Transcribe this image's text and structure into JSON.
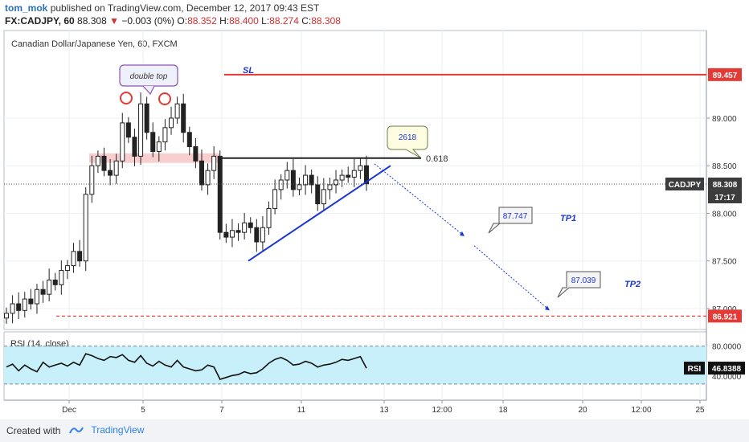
{
  "header": {
    "author": "tom_mok",
    "published": "published on TradingView.com, December 12, 2017 09:43 EST",
    "symbol_line": "FX:CADJPY, 60",
    "last": "88.308",
    "change": "−0.003 (0%)",
    "o_label": "O:",
    "o_value": "88.352",
    "h_label": "H:",
    "h_value": "88.400",
    "l_label": "L:",
    "l_value": "88.274",
    "c_label": "C:",
    "c_value": "88.308"
  },
  "footer": {
    "created_with": "Created with",
    "brand": "TradingView"
  },
  "colors": {
    "up_red": "#e53935",
    "trend_blue": "#1a35d6",
    "rsi_fill": "#c7f0fa",
    "price_tag": "#3c3c3c",
    "brand": "#2f80ed"
  },
  "chart_data": [
    {
      "type": "candlestick",
      "title": "Canadian Dollar/Japanese Yen, 60, FXCM",
      "ylim": [
        86.78,
        89.92
      ],
      "y_ticks": [
        "89.000",
        "88.500",
        "88.000",
        "87.500",
        "87.000"
      ],
      "x_ticks": [
        "Dec",
        "5",
        "7",
        "11",
        "13",
        "12:00",
        "18",
        "20",
        "12:00",
        "25"
      ],
      "price_labels": [
        {
          "label": "89.457",
          "value": 89.457,
          "style": "red"
        },
        {
          "label": "CADJPY",
          "value": 88.308,
          "style": "dark"
        },
        {
          "label": "88.308",
          "value": 88.308,
          "style": "dark"
        },
        {
          "label": "17:17",
          "value": 88.2,
          "style": "dark"
        },
        {
          "label": "86.921",
          "value": 86.921,
          "style": "red"
        }
      ],
      "levels": [
        {
          "name": "SL",
          "value": 89.457
        },
        {
          "name": "fib",
          "label": "0.618",
          "value": 88.58
        },
        {
          "name": "support",
          "value": 86.921
        }
      ],
      "annotations": {
        "double_top": "double top",
        "callout_2618": "2618",
        "sl": "SL",
        "tp1": "TP1",
        "tp2": "TP2",
        "tp1_value": "87.747",
        "tp2_value": "87.039"
      },
      "close_series": [
        86.95,
        87.05,
        86.98,
        87.1,
        87.05,
        87.2,
        87.15,
        87.3,
        87.25,
        87.4,
        87.45,
        87.6,
        87.5,
        88.2,
        88.5,
        88.6,
        88.45,
        88.4,
        88.55,
        88.95,
        88.8,
        88.6,
        89.15,
        88.85,
        88.65,
        88.75,
        88.9,
        89.0,
        89.15,
        88.85,
        88.7,
        88.55,
        88.3,
        88.45,
        88.6,
        87.8,
        87.75,
        87.82,
        87.8,
        87.9,
        87.85,
        87.7,
        87.85,
        88.05,
        88.25,
        88.35,
        88.45,
        88.25,
        88.3,
        88.4,
        88.3,
        88.1,
        88.25,
        88.3,
        88.35,
        88.4,
        88.38,
        88.45,
        88.5,
        88.31
      ]
    },
    {
      "type": "line",
      "title": "RSI (14, close)",
      "ylim": [
        20,
        80
      ],
      "y_ticks": [
        "80.0000",
        "40.0000"
      ],
      "band": [
        30,
        70
      ],
      "current_label": "RSI",
      "current_value_label": "46.8388",
      "current": 46.8388,
      "values": [
        48,
        51,
        44,
        50,
        46,
        43,
        53,
        48,
        50,
        52,
        49,
        53,
        50,
        62,
        60,
        57,
        55,
        59,
        58,
        61,
        55,
        53,
        60,
        52,
        49,
        54,
        50,
        48,
        55,
        48,
        46,
        44,
        45,
        50,
        48,
        35,
        37,
        39,
        40,
        43,
        41,
        42,
        46,
        52,
        56,
        58,
        55,
        50,
        51,
        54,
        52,
        48,
        50,
        51,
        53,
        56,
        55,
        57,
        59,
        46.8
      ]
    }
  ]
}
